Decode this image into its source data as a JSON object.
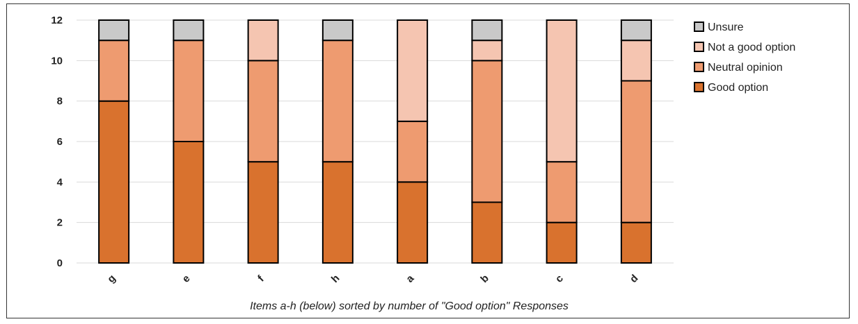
{
  "chart_data": {
    "type": "bar",
    "stacked": true,
    "title": "",
    "xlabel": "Items a-h (below) sorted by number of \"Good option\" Responses",
    "ylabel": "",
    "ylim": [
      0,
      12
    ],
    "yticks": [
      0,
      2,
      4,
      6,
      8,
      10,
      12
    ],
    "grid": true,
    "legend_position": "top-right",
    "categories": [
      "g",
      "e",
      "f",
      "h",
      "a",
      "b",
      "c",
      "d"
    ],
    "series": [
      {
        "name": "Good option",
        "color": "#d9722e",
        "values": [
          8,
          6,
          5,
          5,
          4,
          3,
          2,
          2
        ]
      },
      {
        "name": "Neutral opinion",
        "color": "#ee9b70",
        "values": [
          3,
          5,
          5,
          6,
          3,
          7,
          3,
          7
        ]
      },
      {
        "name": "Not a good option",
        "color": "#f5c5b1",
        "values": [
          0,
          0,
          2,
          0,
          5,
          1,
          7,
          2
        ]
      },
      {
        "name": "Unsure",
        "color": "#c9c9c9",
        "values": [
          1,
          1,
          0,
          1,
          0,
          1,
          0,
          1
        ]
      }
    ],
    "legend_order": [
      "Unsure",
      "Not a good option",
      "Neutral opinion",
      "Good option"
    ]
  }
}
